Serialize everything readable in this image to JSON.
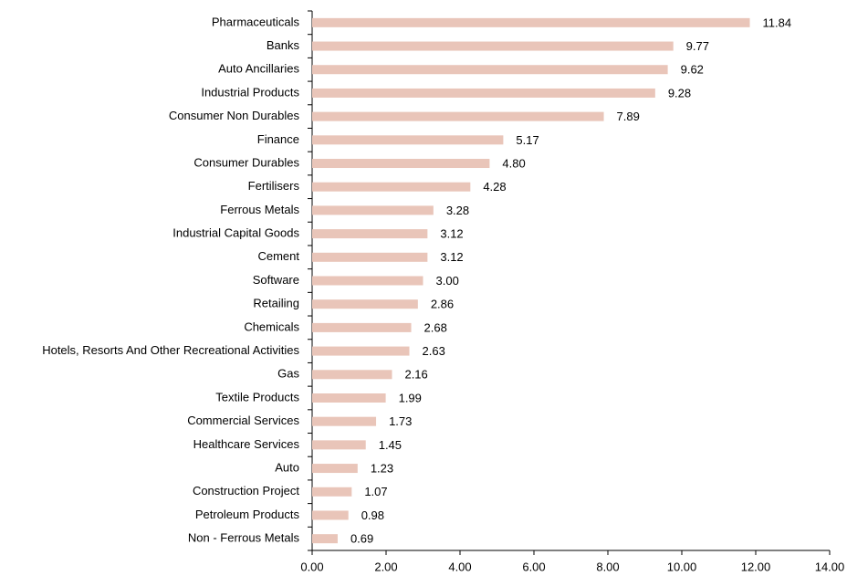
{
  "chart_data": {
    "type": "barh",
    "categories": [
      "Pharmaceuticals",
      "Banks",
      "Auto Ancillaries",
      "Industrial Products",
      "Consumer Non Durables",
      "Finance",
      "Consumer Durables",
      "Fertilisers",
      "Ferrous Metals",
      "Industrial Capital Goods",
      "Cement",
      "Software",
      "Retailing",
      "Chemicals",
      "Hotels, Resorts And Other Recreational Activities",
      "Gas",
      "Textile Products",
      "Commercial Services",
      "Healthcare Services",
      "Auto",
      "Construction Project",
      "Petroleum Products",
      "Non - Ferrous Metals"
    ],
    "values": [
      11.84,
      9.77,
      9.62,
      9.28,
      7.89,
      5.17,
      4.8,
      4.28,
      3.28,
      3.12,
      3.12,
      3.0,
      2.86,
      2.68,
      2.63,
      2.16,
      1.99,
      1.73,
      1.45,
      1.23,
      1.07,
      0.98,
      0.69
    ],
    "value_labels": [
      "11.84",
      "9.77",
      "9.62",
      "9.28",
      "7.89",
      "5.17",
      "4.80",
      "4.28",
      "3.28",
      "3.12",
      "3.12",
      "3.00",
      "2.86",
      "2.68",
      "2.63",
      "2.16",
      "1.99",
      "1.73",
      "1.45",
      "1.23",
      "1.07",
      "0.98",
      "0.69"
    ],
    "color": "#e9c5b9",
    "xlim": [
      0,
      14
    ],
    "xticks": [
      {
        "value": 0,
        "label": "0.00"
      },
      {
        "value": 2,
        "label": "2.00"
      },
      {
        "value": 4,
        "label": "4.00"
      },
      {
        "value": 6,
        "label": "6.00"
      },
      {
        "value": 8,
        "label": "8.00"
      },
      {
        "value": 10,
        "label": "10.00"
      },
      {
        "value": 12,
        "label": "12.00"
      },
      {
        "value": 14,
        "label": "14.00"
      }
    ],
    "grid": false
  }
}
